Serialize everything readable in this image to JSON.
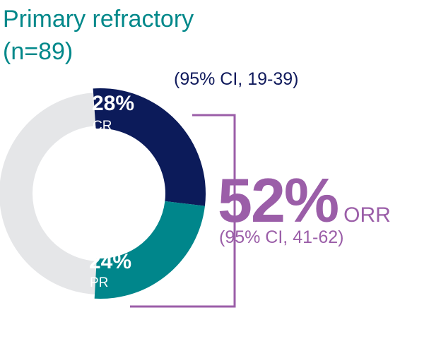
{
  "header": {
    "title_line1": "Primary refractory",
    "title_line2": "(n=89)"
  },
  "chart_data": {
    "type": "pie",
    "segments": [
      {
        "key": "cr",
        "name": "CR",
        "value": 28,
        "value_label": "28%",
        "color": "#0c1b5a"
      },
      {
        "key": "pr",
        "name": "PR",
        "value": 24,
        "value_label": "24%",
        "color": "#00868b"
      },
      {
        "key": "rest",
        "name": "",
        "value": 48,
        "value_label": "",
        "color": "#e5e6e8"
      }
    ],
    "annotations": {
      "cr_ci": "(95% CI, 19-39)",
      "orr_value": "52%",
      "orr_label": "ORR",
      "orr_ci": "(95% CI, 41-62)"
    },
    "bracket_color": "#9b5ea8"
  }
}
